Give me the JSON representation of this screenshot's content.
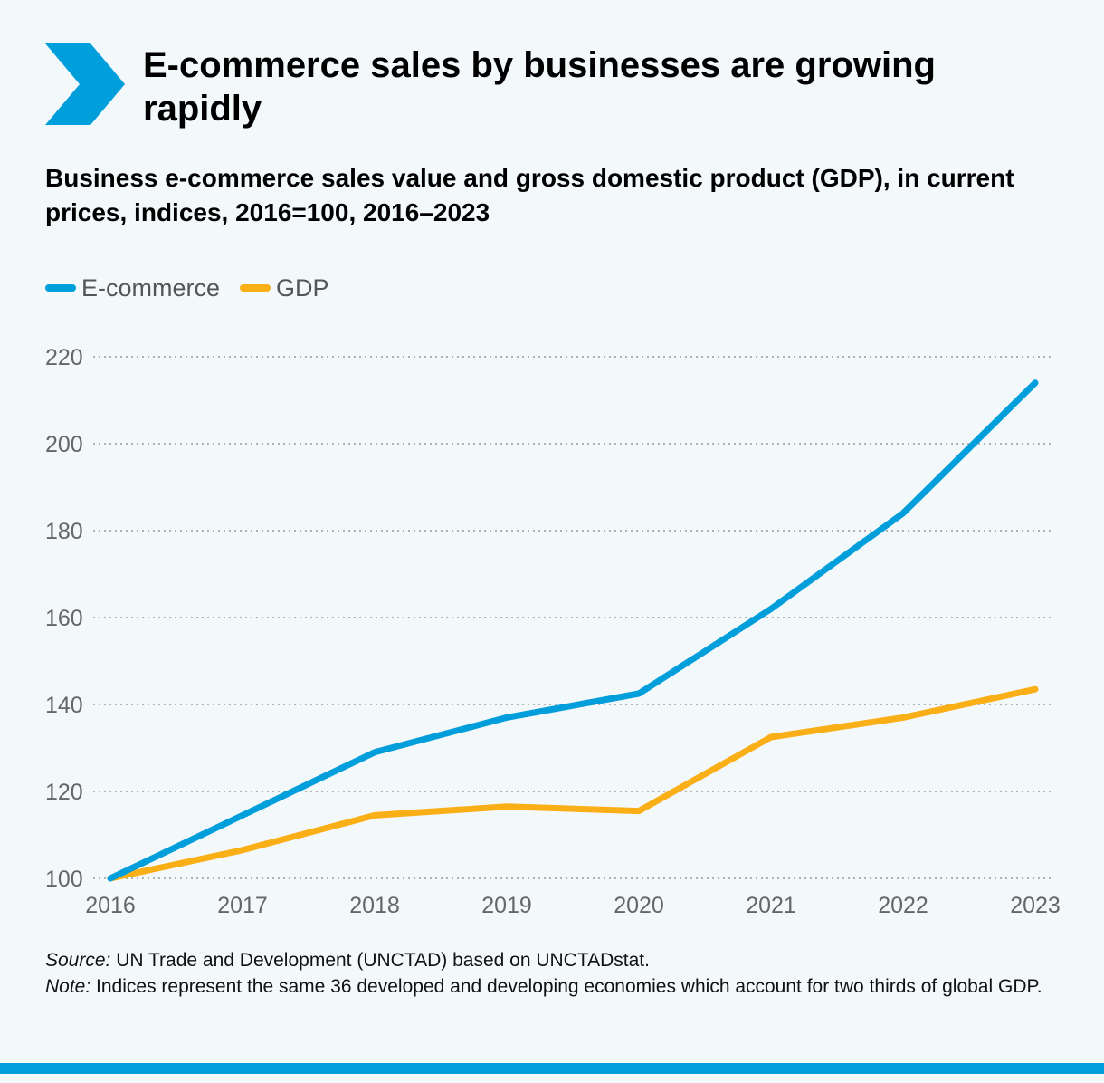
{
  "title": "E-commerce sales by businesses are growing rapidly",
  "subtitle": "Business e-commerce sales value and gross domestic product (GDP), in current prices, indices, 2016=100, 2016–2023",
  "colors": {
    "accent": "#009edb",
    "ecommerce": "#009edb",
    "gdp": "#fbaf17",
    "grid": "#9a9a9a"
  },
  "icons": {
    "header": "chevron-right-icon"
  },
  "legend": [
    {
      "label": "E-commerce",
      "color": "#009edb"
    },
    {
      "label": "GDP",
      "color": "#fbaf17"
    }
  ],
  "chart_data": {
    "type": "line",
    "title": "Business e-commerce sales value and gross domestic product (GDP), in current prices, indices, 2016=100, 2016–2023",
    "xlabel": "",
    "ylabel": "",
    "categories": [
      "2016",
      "2017",
      "2018",
      "2019",
      "2020",
      "2021",
      "2022",
      "2023"
    ],
    "y_ticks": [
      100,
      120,
      140,
      160,
      180,
      200,
      220
    ],
    "ylim": [
      100,
      220
    ],
    "grid": true,
    "legend_position": "top-left",
    "series": [
      {
        "name": "E-commerce",
        "color": "#009edb",
        "values": [
          100,
          114.5,
          129,
          137,
          142.5,
          162,
          184,
          214
        ]
      },
      {
        "name": "GDP",
        "color": "#fbaf17",
        "values": [
          100,
          106.5,
          114.5,
          116.5,
          115.5,
          132.5,
          137,
          143.5
        ]
      }
    ]
  },
  "footnotes": {
    "source_label": "Source:",
    "source_text": " UN Trade and Development (UNCTAD) based on UNCTADstat.",
    "note_label": "Note:",
    "note_text": " Indices represent the same 36 developed and developing economies which account for two thirds of global GDP."
  }
}
